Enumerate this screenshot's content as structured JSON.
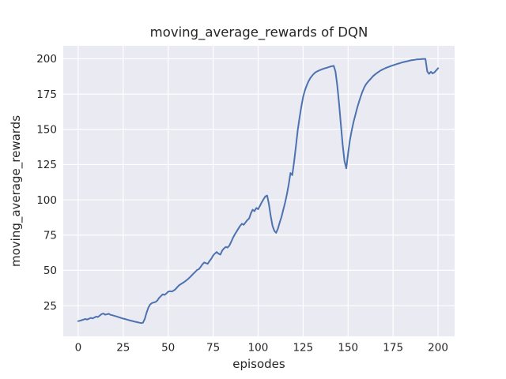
{
  "chart_data": {
    "type": "line",
    "title": "moving_average_rewards of DQN",
    "xlabel": "episodes",
    "ylabel": "moving_average_rewards",
    "xticks": [
      0,
      25,
      50,
      75,
      100,
      125,
      150,
      175,
      200
    ],
    "yticks": [
      25,
      50,
      75,
      100,
      125,
      150,
      175,
      200
    ],
    "xlim": [
      -8.3,
      209.2
    ],
    "ylim": [
      3.2,
      209.2
    ],
    "grid": true,
    "legend": "none",
    "x_start": 0,
    "x_step": 1,
    "series": [
      {
        "name": "DQN moving average rewards",
        "color": "#4C72B0",
        "values": [
          14.0,
          14.3,
          14.7,
          15.1,
          15.5,
          15.1,
          15.7,
          16.3,
          15.9,
          16.6,
          17.2,
          16.9,
          18.0,
          19.0,
          19.4,
          18.6,
          18.9,
          19.2,
          18.4,
          18.2,
          17.8,
          17.4,
          17.0,
          16.6,
          16.2,
          15.8,
          15.5,
          15.1,
          14.8,
          14.4,
          14.1,
          13.8,
          13.5,
          13.2,
          12.9,
          12.6,
          12.9,
          15.5,
          20.0,
          23.5,
          25.8,
          26.8,
          27.2,
          27.6,
          28.6,
          30.5,
          31.8,
          33.0,
          32.6,
          33.6,
          34.8,
          35.2,
          35.0,
          35.6,
          36.5,
          38.0,
          39.3,
          40.2,
          41.0,
          41.8,
          42.8,
          43.8,
          45.0,
          46.3,
          47.6,
          48.8,
          50.2,
          50.8,
          52.3,
          54.2,
          55.6,
          55.1,
          54.7,
          56.6,
          58.3,
          60.6,
          62.0,
          63.0,
          61.8,
          61.2,
          64.0,
          65.5,
          66.6,
          66.1,
          67.6,
          70.1,
          73.0,
          75.4,
          77.5,
          79.5,
          81.5,
          83.0,
          82.3,
          84.0,
          85.6,
          86.8,
          90.5,
          93.0,
          92.0,
          94.2,
          93.4,
          95.8,
          98.2,
          100.4,
          102.4,
          103.0,
          97.0,
          88.5,
          81.5,
          78.0,
          76.6,
          79.5,
          84.0,
          88.0,
          93.0,
          98.0,
          104.0,
          111.0,
          119.0,
          117.5,
          127.0,
          138.0,
          149.0,
          158.0,
          166.0,
          173.0,
          177.5,
          181.0,
          184.0,
          186.3,
          188.0,
          189.4,
          190.5,
          191.2,
          191.8,
          192.3,
          192.8,
          193.2,
          193.6,
          194.0,
          194.4,
          194.7,
          195.0,
          191.0,
          181.0,
          168.0,
          153.0,
          139.0,
          127.5,
          122.3,
          133.0,
          142.0,
          149.0,
          155.0,
          160.0,
          164.8,
          169.2,
          173.2,
          176.8,
          179.8,
          182.0,
          183.6,
          185.0,
          186.4,
          187.8,
          188.9,
          189.9,
          190.8,
          191.6,
          192.3,
          192.9,
          193.5,
          194.0,
          194.5,
          195.0,
          195.4,
          195.8,
          196.2,
          196.6,
          197.0,
          197.4,
          197.7,
          198.0,
          198.3,
          198.6,
          198.9,
          199.1,
          199.3,
          199.5,
          199.6,
          199.7,
          199.8,
          199.9,
          199.9,
          191.0,
          189.3,
          190.8,
          189.6,
          190.4,
          191.8,
          193.3
        ]
      }
    ]
  },
  "style": {
    "figure_bg": "#ffffff",
    "axes_bg": "#EAEAF2",
    "grid_color": "#ffffff",
    "line_color": "#4C72B0",
    "text_color": "#262626"
  }
}
